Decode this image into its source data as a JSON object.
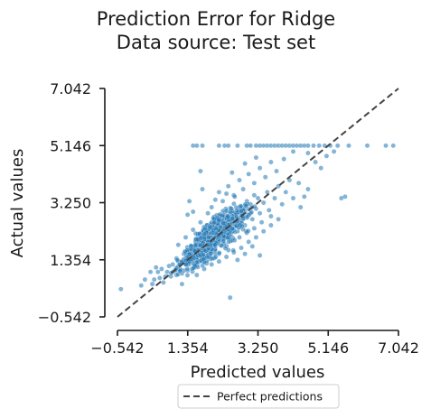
{
  "chart_data": {
    "type": "scatter",
    "title_line1": "Prediction Error for Ridge",
    "title_line2": "Data source: Test set",
    "xlabel": "Predicted values",
    "ylabel": "Actual values",
    "xlim": [
      -0.542,
      7.042
    ],
    "ylim": [
      -0.542,
      7.042
    ],
    "xticks": [
      -0.542,
      1.354,
      3.25,
      5.146,
      7.042
    ],
    "yticks": [
      -0.542,
      1.354,
      3.25,
      5.146,
      7.042
    ],
    "xtick_labels": [
      "−0.542",
      "1.354",
      "3.250",
      "5.146",
      "7.042"
    ],
    "ytick_labels": [
      "−0.542",
      "1.354",
      "3.250",
      "5.146",
      "7.042"
    ],
    "reference_line": {
      "name": "Perfect predictions",
      "style": "dashed",
      "color": "#444444",
      "from": [
        -0.542,
        -0.542
      ],
      "to": [
        7.042,
        7.042
      ]
    },
    "legend": {
      "placement": "bottom-center",
      "entries": [
        "Perfect predictions"
      ]
    },
    "point_color": "#1f77b4",
    "point_alpha": 0.55,
    "point_count_estimate": 1000,
    "points": [
      [
        -0.45,
        0.38
      ],
      [
        0.1,
        0.5
      ],
      [
        0.4,
        0.55
      ],
      [
        0.55,
        0.95
      ],
      [
        0.6,
        0.75
      ],
      [
        0.7,
        0.6
      ],
      [
        0.8,
        0.95
      ],
      [
        0.9,
        0.8
      ],
      [
        0.95,
        1.2
      ],
      [
        1.0,
        1.0
      ],
      [
        1.05,
        0.85
      ],
      [
        1.1,
        1.3
      ],
      [
        1.15,
        1.05
      ],
      [
        1.2,
        0.9
      ],
      [
        1.25,
        1.55
      ],
      [
        1.3,
        1.2
      ],
      [
        1.35,
        1.0
      ],
      [
        1.4,
        1.45
      ],
      [
        1.45,
        1.25
      ],
      [
        1.5,
        1.65
      ],
      [
        1.55,
        1.1
      ],
      [
        1.6,
        1.4
      ],
      [
        1.65,
        1.9
      ],
      [
        1.7,
        1.55
      ],
      [
        1.75,
        1.3
      ],
      [
        1.8,
        1.75
      ],
      [
        1.85,
        2.0
      ],
      [
        1.9,
        1.6
      ],
      [
        1.95,
        1.45
      ],
      [
        2.0,
        1.85
      ],
      [
        2.05,
        2.2
      ],
      [
        2.1,
        1.7
      ],
      [
        2.15,
        2.05
      ],
      [
        2.2,
        1.55
      ],
      [
        2.25,
        2.4
      ],
      [
        2.3,
        1.95
      ],
      [
        2.35,
        2.15
      ],
      [
        2.4,
        1.8
      ],
      [
        2.45,
        2.6
      ],
      [
        2.5,
        2.25
      ],
      [
        2.55,
        2.0
      ],
      [
        2.6,
        2.45
      ],
      [
        2.65,
        2.8
      ],
      [
        2.7,
        2.3
      ],
      [
        2.75,
        2.1
      ],
      [
        2.8,
        2.65
      ],
      [
        2.85,
        3.0
      ],
      [
        2.9,
        2.5
      ],
      [
        2.95,
        2.25
      ],
      [
        3.0,
        2.85
      ],
      [
        3.05,
        3.2
      ],
      [
        3.1,
        2.7
      ],
      [
        3.15,
        2.4
      ],
      [
        3.2,
        3.05
      ],
      [
        3.25,
        3.4
      ],
      [
        3.3,
        2.9
      ],
      [
        3.35,
        2.6
      ],
      [
        3.4,
        3.25
      ],
      [
        3.5,
        3.6
      ],
      [
        3.55,
        3.0
      ],
      [
        3.6,
        2.8
      ],
      [
        3.7,
        3.4
      ],
      [
        3.8,
        3.8
      ],
      [
        3.9,
        3.2
      ],
      [
        4.0,
        3.6
      ],
      [
        4.1,
        4.0
      ],
      [
        4.2,
        3.4
      ],
      [
        4.35,
        3.9
      ],
      [
        4.5,
        3.45
      ],
      [
        4.6,
        3.7
      ],
      [
        1.1,
        1.85
      ],
      [
        1.3,
        2.1
      ],
      [
        1.5,
        2.35
      ],
      [
        1.7,
        2.6
      ],
      [
        1.9,
        2.9
      ],
      [
        2.0,
        3.1
      ],
      [
        2.1,
        3.35
      ],
      [
        2.2,
        3.6
      ],
      [
        2.3,
        3.3
      ],
      [
        2.45,
        3.8
      ],
      [
        2.6,
        3.5
      ],
      [
        2.75,
        4.0
      ],
      [
        2.85,
        3.7
      ],
      [
        3.0,
        4.2
      ],
      [
        3.15,
        3.9
      ],
      [
        3.3,
        4.4
      ],
      [
        3.45,
        4.1
      ],
      [
        3.6,
        4.6
      ],
      [
        3.75,
        4.3
      ],
      [
        3.95,
        4.7
      ],
      [
        1.7,
        4.3
      ],
      [
        1.75,
        3.7
      ],
      [
        1.4,
        3.3
      ],
      [
        1.35,
        2.85
      ],
      [
        1.5,
        2.95
      ],
      [
        2.55,
        4.25
      ],
      [
        2.9,
        4.55
      ],
      [
        3.2,
        4.75
      ],
      [
        2.4,
        3.55
      ],
      [
        2.05,
        2.75
      ],
      [
        1.2,
        0.55
      ],
      [
        1.6,
        0.85
      ],
      [
        1.8,
        1.05
      ],
      [
        2.0,
        1.2
      ],
      [
        2.2,
        1.3
      ],
      [
        2.4,
        1.45
      ],
      [
        2.6,
        1.6
      ],
      [
        2.8,
        1.75
      ],
      [
        3.0,
        1.95
      ],
      [
        3.2,
        2.1
      ],
      [
        3.4,
        2.3
      ],
      [
        3.6,
        2.5
      ],
      [
        2.5,
        0.1
      ],
      [
        3.3,
        1.5
      ],
      [
        3.8,
        2.7
      ],
      [
        4.4,
        3.1
      ],
      [
        5.5,
        3.4
      ],
      [
        2.7,
        1.35
      ],
      [
        2.9,
        1.55
      ],
      [
        3.1,
        1.8
      ],
      [
        0.2,
        0.7
      ],
      [
        0.35,
        0.95
      ],
      [
        0.45,
        0.7
      ],
      [
        0.5,
        1.1
      ],
      [
        0.65,
        1.05
      ],
      [
        0.75,
        0.8
      ],
      [
        0.85,
        1.15
      ],
      [
        0.95,
        0.95
      ],
      [
        1.05,
        1.4
      ],
      [
        1.15,
        1.2
      ],
      [
        1.25,
        1.0
      ],
      [
        1.35,
        1.6
      ],
      [
        1.45,
        1.35
      ],
      [
        1.55,
        1.8
      ],
      [
        1.65,
        1.5
      ],
      [
        1.75,
        2.05
      ],
      [
        1.85,
        1.7
      ],
      [
        1.95,
        2.25
      ],
      [
        2.05,
        1.9
      ],
      [
        2.15,
        2.5
      ],
      [
        2.25,
        2.1
      ],
      [
        2.35,
        2.7
      ],
      [
        2.45,
        2.3
      ],
      [
        2.55,
        2.9
      ],
      [
        2.65,
        2.5
      ],
      [
        2.75,
        3.1
      ],
      [
        2.85,
        2.7
      ],
      [
        2.95,
        3.3
      ],
      [
        3.05,
        2.9
      ],
      [
        3.15,
        3.5
      ],
      [
        1.5,
        5.146
      ],
      [
        1.6,
        5.146
      ],
      [
        1.75,
        5.146
      ],
      [
        2.2,
        5.146
      ],
      [
        2.35,
        5.146
      ],
      [
        2.45,
        5.146
      ],
      [
        2.7,
        5.146
      ],
      [
        2.95,
        5.146
      ],
      [
        3.05,
        5.146
      ],
      [
        3.2,
        5.146
      ],
      [
        3.3,
        5.146
      ],
      [
        3.4,
        5.146
      ],
      [
        3.5,
        5.146
      ],
      [
        3.6,
        5.146
      ],
      [
        3.7,
        5.146
      ],
      [
        3.8,
        5.146
      ],
      [
        3.9,
        5.146
      ],
      [
        4.0,
        5.146
      ],
      [
        4.1,
        5.146
      ],
      [
        4.2,
        5.146
      ],
      [
        4.3,
        5.146
      ],
      [
        4.4,
        5.146
      ],
      [
        4.5,
        5.146
      ],
      [
        4.6,
        5.146
      ],
      [
        4.75,
        5.146
      ],
      [
        4.9,
        5.146
      ],
      [
        5.05,
        5.146
      ],
      [
        5.2,
        5.146
      ],
      [
        5.4,
        5.146
      ],
      [
        5.7,
        5.146
      ],
      [
        6.2,
        5.146
      ],
      [
        6.7,
        5.146
      ],
      [
        6.9,
        5.146
      ],
      [
        4.8,
        4.6
      ],
      [
        4.95,
        4.4
      ],
      [
        5.1,
        4.8
      ],
      [
        5.3,
        4.95
      ],
      [
        5.6,
        3.45
      ],
      [
        4.6,
        4.9
      ],
      [
        4.2,
        4.95
      ]
    ]
  }
}
